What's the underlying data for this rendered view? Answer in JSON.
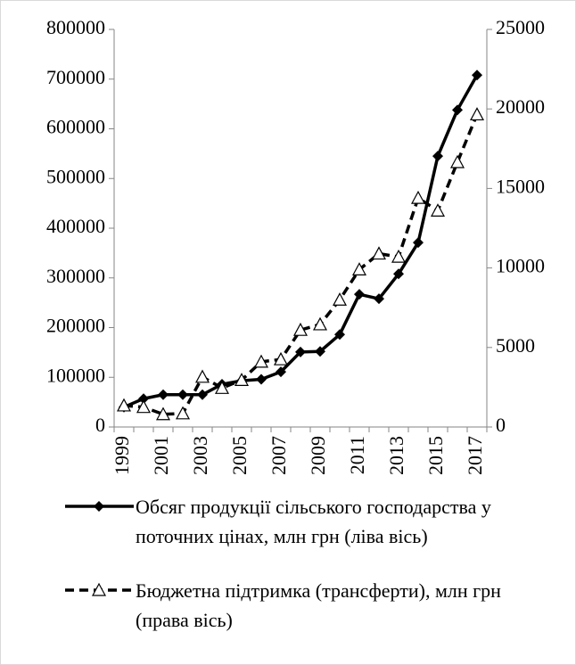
{
  "chart_data": {
    "type": "line",
    "categories": [
      "1999",
      null,
      "2001",
      null,
      "2003",
      null,
      "2005",
      null,
      "2007",
      null,
      "2009",
      null,
      "2011",
      null,
      "2013",
      null,
      "2015",
      null,
      "2017"
    ],
    "series": [
      {
        "name": "Обсяг продукції сільського господарства у поточних цінах, млн грн (ліва вісь)",
        "color": "#000000",
        "marker": "diamond",
        "line_style": "solid",
        "values": [
          40000,
          57000,
          65000,
          65000,
          65000,
          86000,
          93000,
          96000,
          111000,
          151000,
          152000,
          186000,
          267000,
          258000,
          308000,
          371000,
          545000,
          638000,
          708000
        ]
      },
      {
        "name": "Бюджетна підтримка (трансферти), млн грн (права вісь)",
        "color": "#000000",
        "marker": "triangle",
        "line_style": "dashed",
        "axis": "y2",
        "values": [
          1350,
          1250,
          800,
          850,
          3150,
          2450,
          2950,
          4100,
          4250,
          6100,
          6450,
          8000,
          9900,
          10900,
          10700,
          14400,
          13600,
          16650,
          19650
        ]
      }
    ],
    "ylim": [
      0,
      800000
    ],
    "yticks": [
      0,
      100000,
      200000,
      300000,
      400000,
      500000,
      600000,
      700000,
      800000
    ],
    "y2lim": [
      0,
      25000
    ],
    "y2ticks": [
      0,
      5000,
      10000,
      15000,
      20000,
      25000
    ],
    "grid": false,
    "legend": "bottom"
  }
}
